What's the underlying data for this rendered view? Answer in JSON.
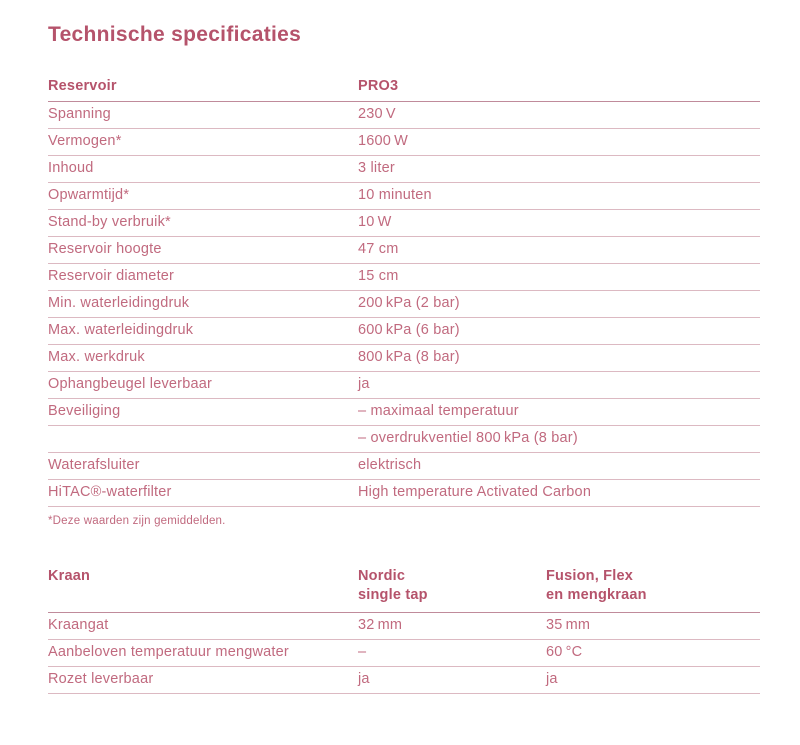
{
  "page": {
    "title": "Technische specificaties",
    "footnote": "*Deze waarden zijn gemiddelden."
  },
  "colors": {
    "heading": "#b5536b",
    "body_text": "#c16a7f",
    "row_line": "#dcb9c2",
    "header_line": "#c08b9b",
    "background": "#ffffff"
  },
  "reservoir_table": {
    "headers": [
      "Reservoir",
      "PRO3"
    ],
    "rows": [
      [
        "Spanning",
        "230 V"
      ],
      [
        "Vermogen*",
        "1600 W"
      ],
      [
        "Inhoud",
        "3 liter"
      ],
      [
        "Opwarmtijd*",
        "10 minuten"
      ],
      [
        "Stand-by verbruik*",
        "10 W"
      ],
      [
        "Reservoir hoogte",
        "47 cm"
      ],
      [
        "Reservoir diameter",
        "15 cm"
      ],
      [
        "Min. waterleidingdruk",
        "200 kPa (2 bar)"
      ],
      [
        "Max. waterleidingdruk",
        "600 kPa (6 bar)"
      ],
      [
        "Max. werkdruk",
        "800 kPa (8 bar)"
      ],
      [
        "Ophangbeugel leverbaar",
        "ja"
      ],
      [
        "Beveiliging",
        "– maximaal temperatuur"
      ],
      [
        "",
        "– overdrukventiel 800 kPa (8 bar)"
      ],
      [
        "Waterafsluiter",
        "elektrisch"
      ],
      [
        "HiTAC®-waterfilter",
        "High temperature Activated Carbon"
      ]
    ]
  },
  "kraan_table": {
    "headers": [
      "Kraan",
      "Nordic\nsingle tap",
      "Fusion, Flex\nen mengkraan"
    ],
    "rows": [
      [
        "Kraangat",
        "32 mm",
        "35 mm"
      ],
      [
        "Aanbeloven temperatuur mengwater",
        "–",
        "60 °C"
      ],
      [
        "Rozet leverbaar",
        "ja",
        "ja"
      ]
    ]
  }
}
